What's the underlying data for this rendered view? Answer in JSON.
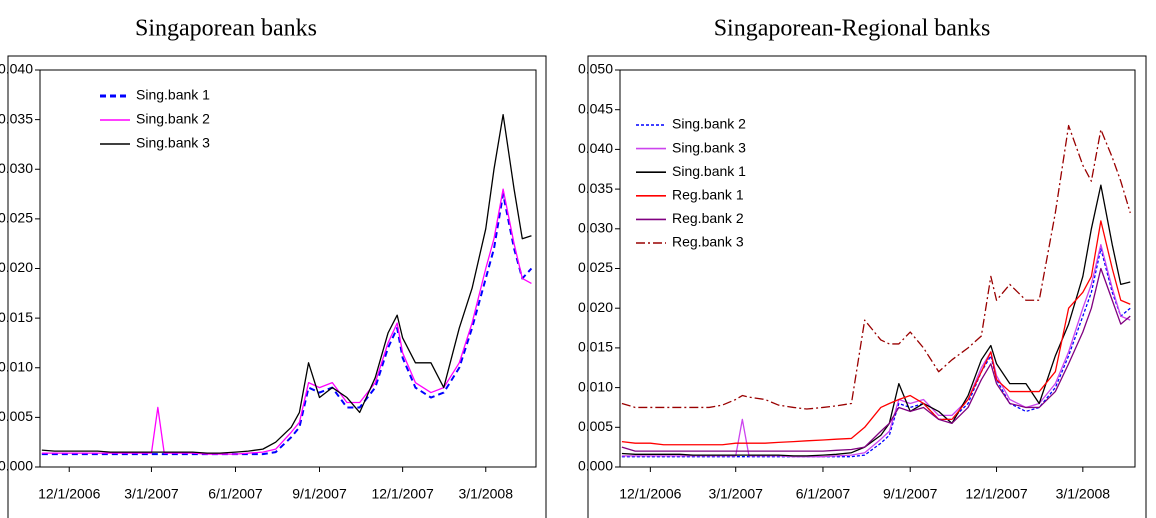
{
  "chart_data": [
    {
      "type": "line",
      "title": "Singaporean banks",
      "x": [
        "11/1/2006",
        "11/15/2006",
        "12/1/2006",
        "12/15/2006",
        "1/1/2007",
        "1/15/2007",
        "2/1/2007",
        "2/15/2007",
        "3/1/2007",
        "3/8/2007",
        "3/15/2007",
        "4/1/2007",
        "4/15/2007",
        "5/1/2007",
        "5/15/2007",
        "6/1/2007",
        "6/15/2007",
        "7/1/2007",
        "7/15/2007",
        "8/1/2007",
        "8/10/2007",
        "8/20/2007",
        "9/1/2007",
        "9/15/2007",
        "10/1/2007",
        "10/15/2007",
        "11/1/2007",
        "11/15/2007",
        "11/25/2007",
        "12/1/2007",
        "12/15/2007",
        "1/1/2008",
        "1/15/2008",
        "2/1/2008",
        "2/15/2008",
        "3/1/2008",
        "3/10/2008",
        "3/20/2008",
        "4/1/2008",
        "4/10/2008",
        "4/20/2008"
      ],
      "xlim": [
        "10/30/2006",
        "4/25/2008"
      ],
      "xticks": [
        "12/1/2006",
        "3/1/2007",
        "6/1/2007",
        "9/1/2007",
        "12/1/2007",
        "3/1/2008"
      ],
      "ylim": [
        0,
        0.04
      ],
      "yticks": [
        {
          "value": 0,
          "label": "0.000"
        },
        {
          "value": 0.005,
          "label": "0.005"
        },
        {
          "value": 0.01,
          "label": "0.010"
        },
        {
          "value": 0.015,
          "label": "0.015"
        },
        {
          "value": 0.02,
          "label": "0.020"
        },
        {
          "value": 0.025,
          "label": "0.025"
        },
        {
          "value": 0.03,
          "label": "0.030"
        },
        {
          "value": 0.035,
          "label": "0.035"
        },
        {
          "value": 0.04,
          "label": "0.040"
        }
      ],
      "series": [
        {
          "name": "Sing.bank 1",
          "color": "#0000ff",
          "dash": "dashed",
          "values": [
            0.0013,
            0.0013,
            0.0013,
            0.0013,
            0.0013,
            0.0013,
            0.0013,
            0.0013,
            0.0013,
            0.0013,
            0.0013,
            0.0013,
            0.0013,
            0.0013,
            0.0013,
            0.0013,
            0.0013,
            0.0013,
            0.0015,
            0.003,
            0.004,
            0.008,
            0.0075,
            0.008,
            0.006,
            0.006,
            0.008,
            0.012,
            0.014,
            0.011,
            0.008,
            0.007,
            0.0075,
            0.01,
            0.014,
            0.019,
            0.022,
            0.0275,
            0.022,
            0.019,
            0.02
          ]
        },
        {
          "name": "Sing.bank 2",
          "color": "#ff00ff",
          "dash": "solid",
          "values": [
            0.0014,
            0.0014,
            0.0014,
            0.0014,
            0.0014,
            0.0014,
            0.0014,
            0.0014,
            0.0014,
            0.006,
            0.0014,
            0.0014,
            0.0014,
            0.0013,
            0.0013,
            0.0013,
            0.0014,
            0.0015,
            0.0018,
            0.0035,
            0.0045,
            0.0085,
            0.008,
            0.0085,
            0.0065,
            0.0065,
            0.0085,
            0.0125,
            0.0145,
            0.0115,
            0.0085,
            0.0075,
            0.008,
            0.0105,
            0.0145,
            0.02,
            0.023,
            0.028,
            0.0225,
            0.019,
            0.0185
          ]
        },
        {
          "name": "Sing.bank 3",
          "color": "#000000",
          "dash": "solid",
          "values": [
            0.0017,
            0.0016,
            0.0016,
            0.0016,
            0.0016,
            0.0015,
            0.0015,
            0.0015,
            0.0015,
            0.0015,
            0.0015,
            0.0015,
            0.0015,
            0.0014,
            0.0014,
            0.0015,
            0.0016,
            0.0018,
            0.0025,
            0.004,
            0.0055,
            0.0105,
            0.007,
            0.008,
            0.007,
            0.0055,
            0.009,
            0.0135,
            0.0153,
            0.013,
            0.0105,
            0.0105,
            0.008,
            0.014,
            0.018,
            0.024,
            0.03,
            0.0355,
            0.028,
            0.023,
            0.0233
          ]
        }
      ]
    },
    {
      "type": "line",
      "title": "Singaporean-Regional banks",
      "x": [
        "11/1/2006",
        "11/15/2006",
        "12/1/2006",
        "12/15/2006",
        "1/1/2007",
        "1/15/2007",
        "2/1/2007",
        "2/15/2007",
        "3/1/2007",
        "3/8/2007",
        "3/15/2007",
        "4/1/2007",
        "4/15/2007",
        "5/1/2007",
        "5/15/2007",
        "6/1/2007",
        "6/15/2007",
        "7/1/2007",
        "7/15/2007",
        "8/1/2007",
        "8/10/2007",
        "8/20/2007",
        "9/1/2007",
        "9/15/2007",
        "10/1/2007",
        "10/15/2007",
        "11/1/2007",
        "11/15/2007",
        "11/25/2007",
        "12/1/2007",
        "12/15/2007",
        "1/1/2008",
        "1/15/2008",
        "2/1/2008",
        "2/15/2008",
        "3/1/2008",
        "3/10/2008",
        "3/20/2008",
        "4/1/2008",
        "4/10/2008",
        "4/20/2008"
      ],
      "xlim": [
        "10/30/2006",
        "4/25/2008"
      ],
      "xticks": [
        "12/1/2006",
        "3/1/2007",
        "6/1/2007",
        "9/1/2007",
        "12/1/2007",
        "3/1/2008"
      ],
      "ylim": [
        0,
        0.05
      ],
      "yticks": [
        {
          "value": 0,
          "label": "0.000"
        },
        {
          "value": 0.005,
          "label": "0.005"
        },
        {
          "value": 0.01,
          "label": "0.010"
        },
        {
          "value": 0.015,
          "label": "0.015"
        },
        {
          "value": 0.02,
          "label": "0.020"
        },
        {
          "value": 0.025,
          "label": "0.025"
        },
        {
          "value": 0.03,
          "label": "0.030"
        },
        {
          "value": 0.035,
          "label": "0.035"
        },
        {
          "value": 0.04,
          "label": "0.040"
        },
        {
          "value": 0.045,
          "label": "0.045"
        },
        {
          "value": 0.05,
          "label": "0.050"
        }
      ],
      "series": [
        {
          "name": "Sing.bank 2",
          "color": "#0000ff",
          "dash": "dotted",
          "values": [
            0.0013,
            0.0013,
            0.0013,
            0.0013,
            0.0013,
            0.0013,
            0.0013,
            0.0013,
            0.0013,
            0.0013,
            0.0013,
            0.0013,
            0.0013,
            0.0013,
            0.0013,
            0.0013,
            0.0013,
            0.0013,
            0.0015,
            0.003,
            0.004,
            0.008,
            0.0075,
            0.008,
            0.006,
            0.006,
            0.008,
            0.012,
            0.014,
            0.011,
            0.008,
            0.007,
            0.0075,
            0.01,
            0.014,
            0.019,
            0.022,
            0.0275,
            0.022,
            0.019,
            0.02
          ]
        },
        {
          "name": "Sing.bank 3",
          "color": "#cc44ee",
          "dash": "solid",
          "values": [
            0.0014,
            0.0014,
            0.0014,
            0.0014,
            0.0014,
            0.0014,
            0.0014,
            0.0014,
            0.0014,
            0.006,
            0.0014,
            0.0014,
            0.0014,
            0.0013,
            0.0013,
            0.0013,
            0.0014,
            0.0015,
            0.0018,
            0.0035,
            0.0045,
            0.0085,
            0.008,
            0.0085,
            0.0065,
            0.0065,
            0.0085,
            0.0125,
            0.0145,
            0.0115,
            0.0085,
            0.0075,
            0.008,
            0.0105,
            0.0145,
            0.02,
            0.023,
            0.028,
            0.0225,
            0.019,
            0.0185
          ]
        },
        {
          "name": "Sing.bank 1",
          "color": "#000000",
          "dash": "solid",
          "values": [
            0.0017,
            0.0016,
            0.0016,
            0.0016,
            0.0016,
            0.0015,
            0.0015,
            0.0015,
            0.0015,
            0.0015,
            0.0015,
            0.0015,
            0.0015,
            0.0014,
            0.0014,
            0.0015,
            0.0016,
            0.0018,
            0.0025,
            0.004,
            0.0055,
            0.0105,
            0.007,
            0.008,
            0.007,
            0.0055,
            0.009,
            0.0135,
            0.0153,
            0.013,
            0.0105,
            0.0105,
            0.008,
            0.014,
            0.018,
            0.024,
            0.03,
            0.0355,
            0.028,
            0.023,
            0.0233
          ]
        },
        {
          "name": "Reg.bank 1",
          "color": "#ff0000",
          "dash": "solid",
          "values": [
            0.0032,
            0.003,
            0.003,
            0.0028,
            0.0028,
            0.0028,
            0.0028,
            0.0028,
            0.003,
            0.003,
            0.003,
            0.003,
            0.0031,
            0.0032,
            0.0033,
            0.0034,
            0.0035,
            0.0036,
            0.005,
            0.0075,
            0.008,
            0.0085,
            0.009,
            0.008,
            0.006,
            0.006,
            0.0085,
            0.012,
            0.0145,
            0.011,
            0.0095,
            0.0095,
            0.0095,
            0.012,
            0.02,
            0.022,
            0.024,
            0.031,
            0.025,
            0.021,
            0.0205
          ]
        },
        {
          "name": "Reg.bank 2",
          "color": "#800080",
          "dash": "solid",
          "values": [
            0.0025,
            0.002,
            0.002,
            0.002,
            0.002,
            0.002,
            0.002,
            0.002,
            0.002,
            0.002,
            0.002,
            0.002,
            0.002,
            0.002,
            0.002,
            0.002,
            0.0021,
            0.0022,
            0.0025,
            0.0045,
            0.0055,
            0.0075,
            0.007,
            0.0075,
            0.006,
            0.0055,
            0.0075,
            0.011,
            0.013,
            0.0105,
            0.008,
            0.0075,
            0.0075,
            0.0095,
            0.013,
            0.017,
            0.02,
            0.025,
            0.021,
            0.018,
            0.019
          ]
        },
        {
          "name": "Reg.bank 3",
          "color": "#990000",
          "dash": "dashdot",
          "values": [
            0.008,
            0.0075,
            0.0075,
            0.0075,
            0.0075,
            0.0075,
            0.0075,
            0.0078,
            0.0085,
            0.009,
            0.0088,
            0.0085,
            0.0078,
            0.0075,
            0.0073,
            0.0075,
            0.0077,
            0.008,
            0.0185,
            0.016,
            0.0155,
            0.0155,
            0.017,
            0.015,
            0.012,
            0.0135,
            0.015,
            0.0165,
            0.024,
            0.021,
            0.023,
            0.021,
            0.021,
            0.032,
            0.043,
            0.038,
            0.036,
            0.0425,
            0.039,
            0.036,
            0.032
          ]
        }
      ]
    }
  ]
}
